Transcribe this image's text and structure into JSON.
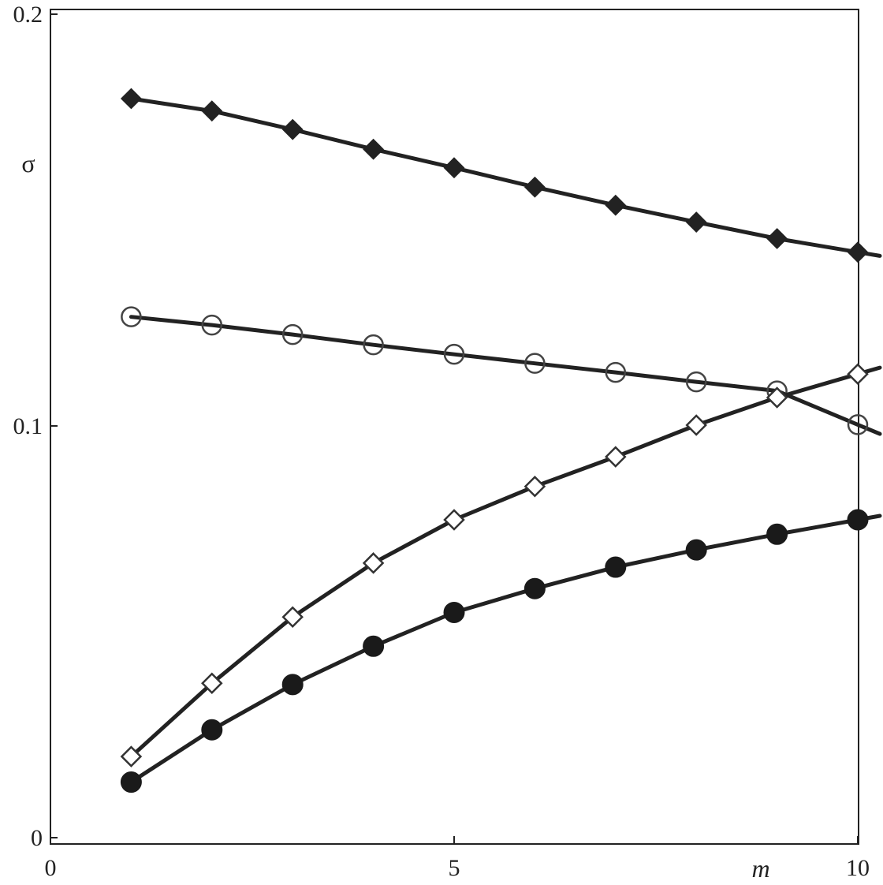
{
  "chart_data": {
    "type": "line",
    "xlabel": "m",
    "ylabel": "σ",
    "xlim": [
      0,
      10
    ],
    "ylim": [
      0,
      0.2
    ],
    "xticks": [
      "0",
      "5",
      "10"
    ],
    "xtick_values": [
      0,
      5,
      10
    ],
    "yticks": [
      "0",
      "0.1",
      "0.2"
    ],
    "ytick_values": [
      0,
      0.1,
      0.2
    ],
    "grid": false,
    "x": [
      1,
      2,
      3,
      4,
      5,
      6,
      7,
      8,
      9,
      10
    ],
    "series": [
      {
        "marker": "filled-diamond",
        "values": [
          0.1795,
          0.1765,
          0.172,
          0.1672,
          0.1627,
          0.158,
          0.1536,
          0.1495,
          0.1455,
          0.1422
        ]
      },
      {
        "marker": "open-circle",
        "values": [
          0.1265,
          0.1245,
          0.1222,
          0.1197,
          0.1174,
          0.1152,
          0.113,
          0.1107,
          0.1085,
          0.1003
        ]
      },
      {
        "marker": "open-diamond",
        "values": [
          0.0197,
          0.0375,
          0.0536,
          0.0667,
          0.0772,
          0.0853,
          0.0925,
          0.1002,
          0.1069,
          0.1126
        ]
      },
      {
        "marker": "filled-circle",
        "values": [
          0.0135,
          0.0262,
          0.0372,
          0.0465,
          0.0547,
          0.0605,
          0.0657,
          0.0699,
          0.0737,
          0.0772
        ]
      }
    ]
  }
}
